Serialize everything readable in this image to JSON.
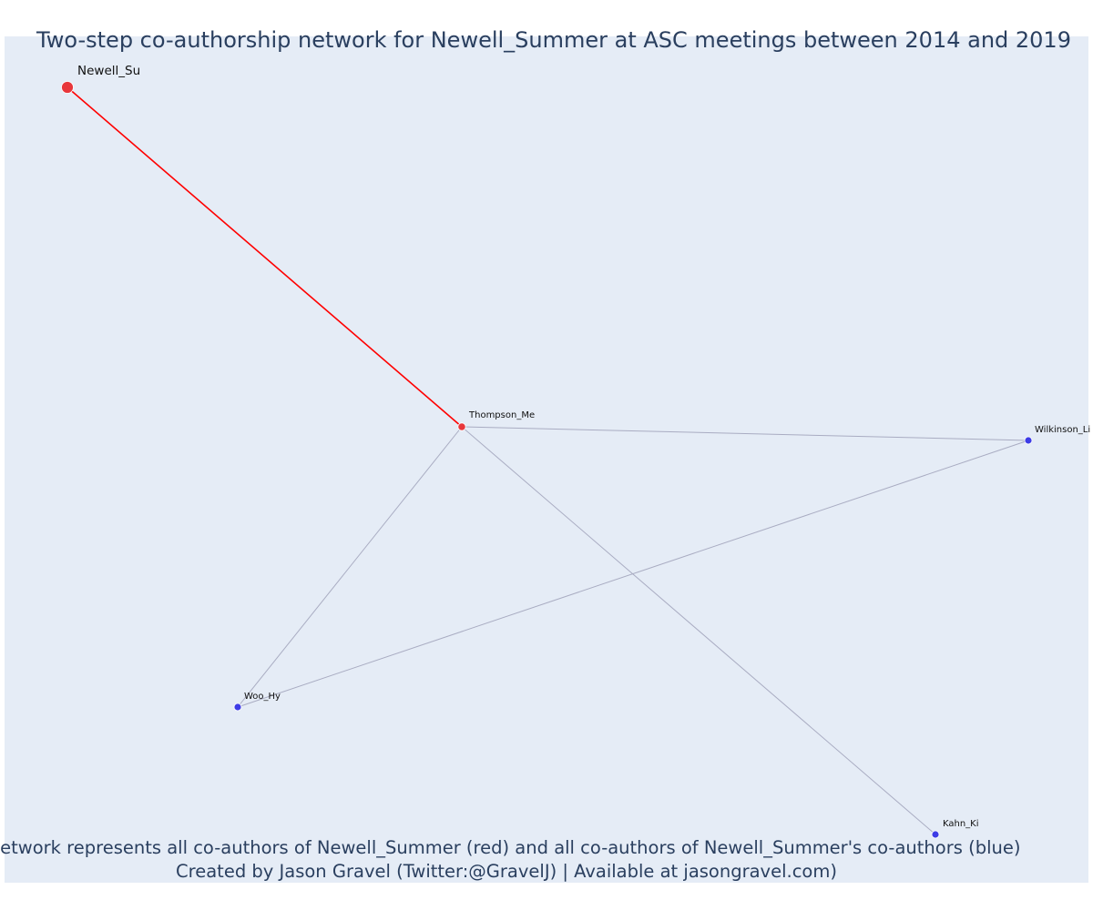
{
  "title": "Two-step co-authorship network for Newell_Summer at ASC meetings between 2014 and 2019",
  "footer": {
    "line1": "Network represents all co-authors of Newell_Summer (red) and all co-authors of Newell_Summer's co-authors (blue)",
    "line2": "Created by Jason Gravel (Twitter:@GravelJ) | Available at jasongravel.com)"
  },
  "colors": {
    "background": "#e5ecf6",
    "ego": "#e8373b",
    "coauthor": "#e8373b",
    "second_step": "#3d3ce6",
    "ego_edge": "#ff0000",
    "other_edge": "#a9acc2",
    "text": "#2a3f5f"
  },
  "network": {
    "nodes": [
      {
        "id": "Newell_Su",
        "label": "Newell_Su",
        "group": "ego"
      },
      {
        "id": "Thompson_Me",
        "label": "Thompson_Me",
        "group": "coauthor"
      },
      {
        "id": "Wilkinson_Li",
        "label": "Wilkinson_Li",
        "group": "second_step"
      },
      {
        "id": "Woo_Hy",
        "label": "Woo_Hy",
        "group": "second_step"
      },
      {
        "id": "Kahn_Ki",
        "label": "Kahn_Ki",
        "group": "second_step"
      }
    ],
    "edges": [
      {
        "source": "Newell_Su",
        "target": "Thompson_Me",
        "type": "ego"
      },
      {
        "source": "Thompson_Me",
        "target": "Wilkinson_Li",
        "type": "other"
      },
      {
        "source": "Thompson_Me",
        "target": "Woo_Hy",
        "type": "other"
      },
      {
        "source": "Thompson_Me",
        "target": "Kahn_Ki",
        "type": "other"
      },
      {
        "source": "Wilkinson_Li",
        "target": "Woo_Hy",
        "type": "other"
      }
    ]
  }
}
